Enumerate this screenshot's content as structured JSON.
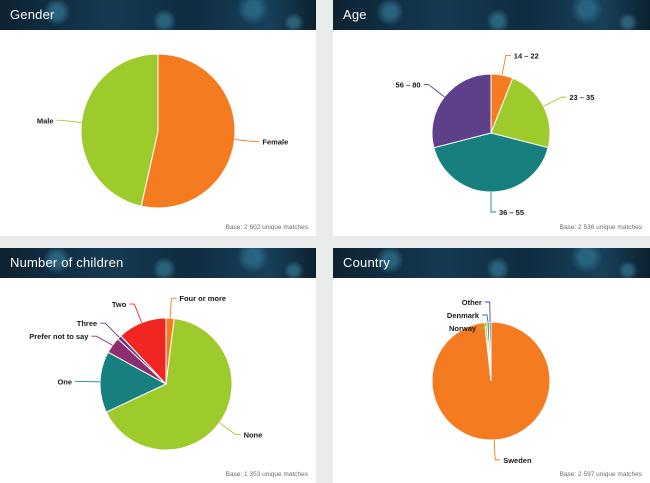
{
  "colors": {
    "orange": "#f47b20",
    "green": "#9dcb2b",
    "teal": "#17807f",
    "purple": "#5d3f8a",
    "red": "#ef2720",
    "magenta": "#8d2f6f",
    "header": "#143a52"
  },
  "chart_data": [
    {
      "type": "pie",
      "title": "Gender",
      "base_note": "Base: 2 602 unique matches",
      "slices": [
        {
          "label": "Female",
          "value": 53.5,
          "color": "#f47b20"
        },
        {
          "label": "Male",
          "value": 46.5,
          "color": "#9dcb2b"
        }
      ]
    },
    {
      "type": "pie",
      "title": "Age",
      "base_note": "Base: 2 536 unique matches",
      "slices": [
        {
          "label": "14 – 22",
          "value": 6,
          "color": "#f47b20"
        },
        {
          "label": "23 – 35",
          "value": 23,
          "color": "#9dcb2b"
        },
        {
          "label": "36 – 55",
          "value": 42,
          "color": "#17807f"
        },
        {
          "label": "56 – 80",
          "value": 29,
          "color": "#5d3f8a"
        }
      ]
    },
    {
      "type": "pie",
      "title": "Number of children",
      "base_note": "Base: 1 353 unique matches",
      "slices": [
        {
          "label": "Four or more",
          "value": 2,
          "color": "#f47b20"
        },
        {
          "label": "None",
          "value": 66,
          "color": "#9dcb2b"
        },
        {
          "label": "One",
          "value": 15,
          "color": "#17807f"
        },
        {
          "label": "Prefer not to say",
          "value": 4,
          "color": "#8d2f6f"
        },
        {
          "label": "Three",
          "value": 1,
          "color": "#5d3f8a"
        },
        {
          "label": "Two",
          "value": 12,
          "color": "#ef2720"
        }
      ]
    },
    {
      "type": "pie",
      "title": "Country",
      "base_note": "Base: 2 597 unique matches",
      "slices": [
        {
          "label": "Sweden",
          "value": 98.3,
          "color": "#f47b20"
        },
        {
          "label": "Norway",
          "value": 0.6,
          "color": "#9dcb2b"
        },
        {
          "label": "Denmark",
          "value": 0.6,
          "color": "#17807f"
        },
        {
          "label": "Other",
          "value": 0.5,
          "color": "#5d3f8a"
        }
      ]
    }
  ]
}
